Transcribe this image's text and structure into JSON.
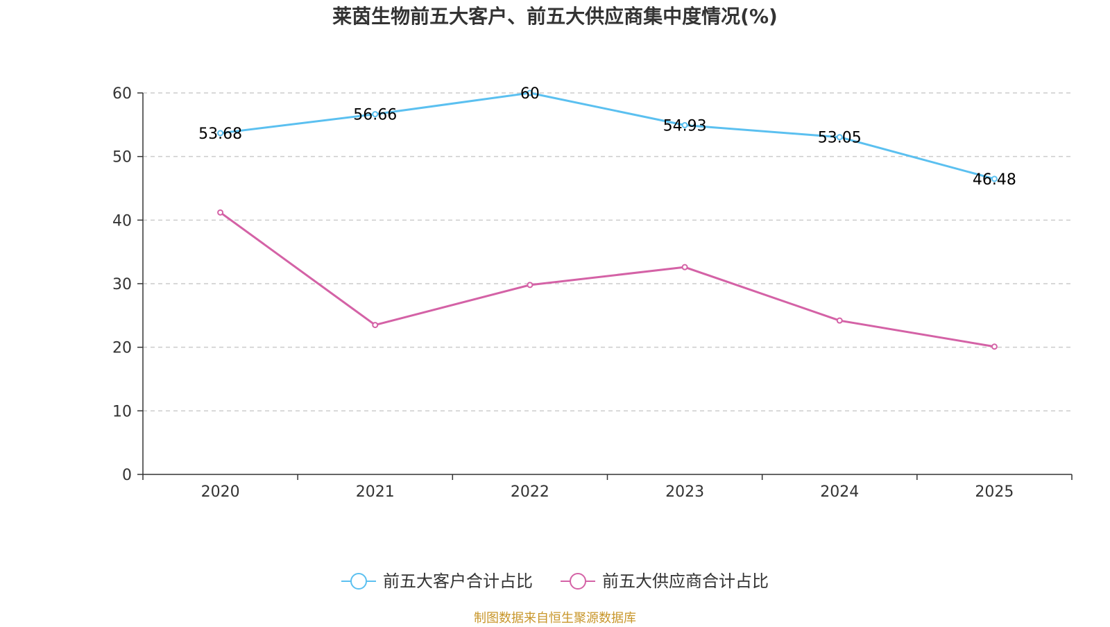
{
  "chart_data": {
    "type": "line",
    "title": "莱茵生物前五大客户、前五大供应商集中度情况(%)",
    "categories": [
      "2020",
      "2021",
      "2022",
      "2023",
      "2024",
      "2025"
    ],
    "ylim": [
      0,
      60
    ],
    "yticks": [
      0,
      10,
      20,
      30,
      40,
      50,
      60
    ],
    "grid": true,
    "legend_position": "bottom",
    "series": [
      {
        "name": "前五大客户合计占比",
        "color": "#5bc0f0",
        "values": [
          53.68,
          56.66,
          60,
          54.93,
          53.05,
          46.48
        ],
        "labels": [
          "53.68",
          "56.66",
          "60",
          "54.93",
          "53.05",
          "46.48"
        ],
        "show_labels": true
      },
      {
        "name": "前五大供应商合计占比",
        "color": "#d462a6",
        "values": [
          41.2,
          23.5,
          29.8,
          32.6,
          24.2,
          20.1
        ],
        "show_labels": false
      }
    ],
    "source": "制图数据来自恒生聚源数据库"
  }
}
